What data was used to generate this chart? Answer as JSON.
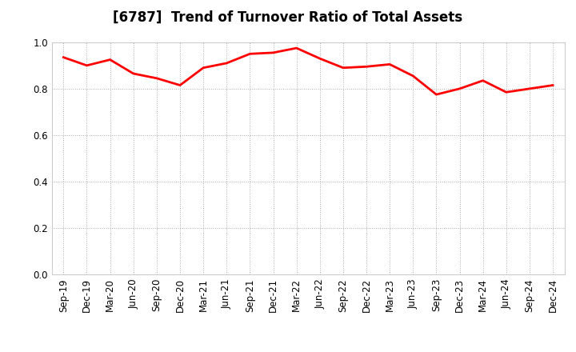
{
  "title": "[6787]  Trend of Turnover Ratio of Total Assets",
  "x_labels": [
    "Sep-19",
    "Dec-19",
    "Mar-20",
    "Jun-20",
    "Sep-20",
    "Dec-20",
    "Mar-21",
    "Jun-21",
    "Sep-21",
    "Dec-21",
    "Mar-22",
    "Jun-22",
    "Sep-22",
    "Dec-22",
    "Mar-23",
    "Jun-23",
    "Sep-23",
    "Dec-23",
    "Mar-24",
    "Jun-24",
    "Sep-24",
    "Dec-24"
  ],
  "y_values": [
    0.935,
    0.9,
    0.925,
    0.865,
    0.845,
    0.815,
    0.89,
    0.91,
    0.95,
    0.955,
    0.975,
    0.93,
    0.89,
    0.895,
    0.905,
    0.855,
    0.775,
    0.8,
    0.835,
    0.785,
    0.8,
    0.815
  ],
  "line_color": "#FF0000",
  "line_width": 2.0,
  "ylim": [
    0.0,
    1.0
  ],
  "yticks": [
    0.0,
    0.2,
    0.4,
    0.6,
    0.8,
    1.0
  ],
  "background_color": "#FFFFFF",
  "grid_color": "#AAAAAA",
  "title_fontsize": 12,
  "tick_fontsize": 8.5
}
